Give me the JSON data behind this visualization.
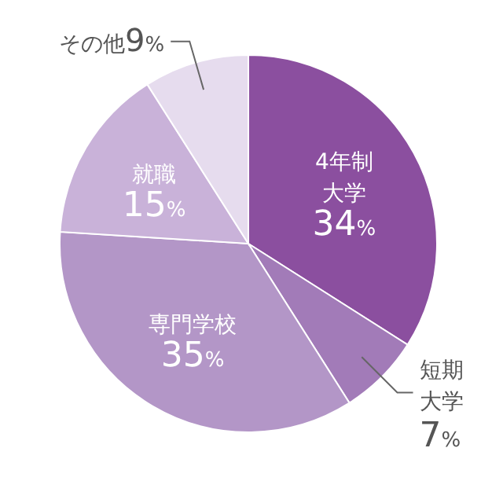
{
  "chart_data": {
    "type": "pie",
    "categories": [
      "4年制大学",
      "短期大学",
      "専門学校",
      "就職",
      "その他"
    ],
    "values": [
      34,
      7,
      35,
      15,
      9
    ],
    "value_labels": [
      "34%",
      "7%",
      "35%",
      "15%",
      "9%"
    ],
    "colors": [
      "#8b4f9f",
      "#a27bb8",
      "#b396c7",
      "#c9b2d9",
      "#e6dcee"
    ]
  }
}
